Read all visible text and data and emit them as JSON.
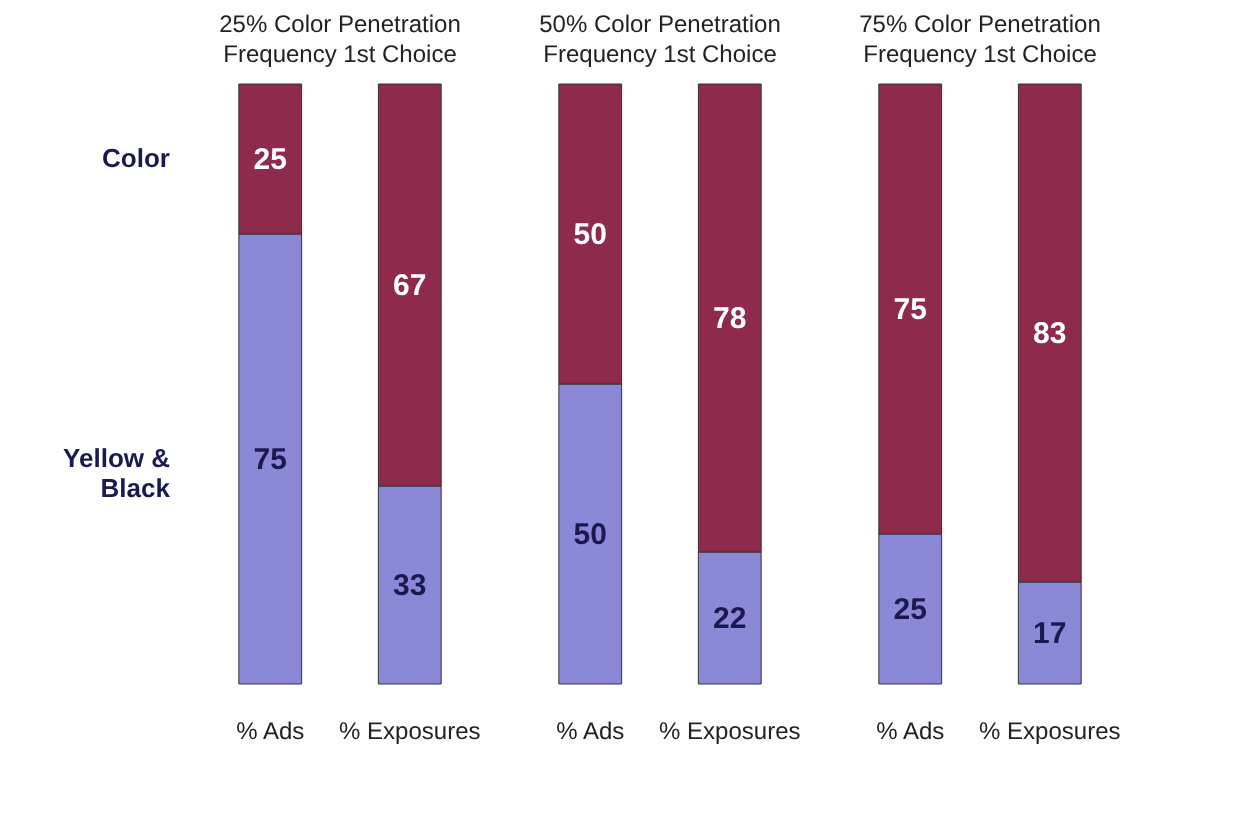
{
  "chart_data": [
    {
      "type": "bar",
      "stacked": true,
      "title": "25% Color Penetration",
      "subtitle": "Frequency   1st Choice",
      "categories": [
        "% Ads",
        "% Exposures"
      ],
      "ylim": [
        0,
        100
      ],
      "tick_labels": "x",
      "data_labels": true,
      "legend": false,
      "grid": false,
      "series": [
        {
          "name": "Yellow & Black",
          "color": "#8c88d8",
          "values": [
            75,
            33
          ]
        },
        {
          "name": "Color",
          "color": "#8e2a4c",
          "values": [
            25,
            67
          ]
        }
      ]
    },
    {
      "type": "bar",
      "stacked": true,
      "title": "50% Color Penetration",
      "subtitle": "Frequency   1st Choice",
      "categories": [
        "% Ads",
        "% Exposures"
      ],
      "ylim": [
        0,
        100
      ],
      "tick_labels": "x",
      "data_labels": true,
      "grid": false,
      "series": [
        {
          "color": "#8c88d8",
          "values": [
            50,
            22
          ]
        },
        {
          "color": "#8e2a4c",
          "values": [
            50,
            78
          ]
        }
      ]
    },
    {
      "type": "bar",
      "stacked": true,
      "title": "75% Color Penetration",
      "subtitle": "Frequency   1st Choice",
      "categories": [
        "% Ads",
        "% Exposures"
      ],
      "ylim": [
        0,
        100
      ],
      "tick_labels": "x",
      "data_labels": true,
      "grid": false,
      "series": [
        {
          "color": "#8c88d8",
          "values": [
            25,
            17
          ]
        },
        {
          "color": "#8e2a4c",
          "values": [
            75,
            83
          ]
        }
      ]
    }
  ]
}
